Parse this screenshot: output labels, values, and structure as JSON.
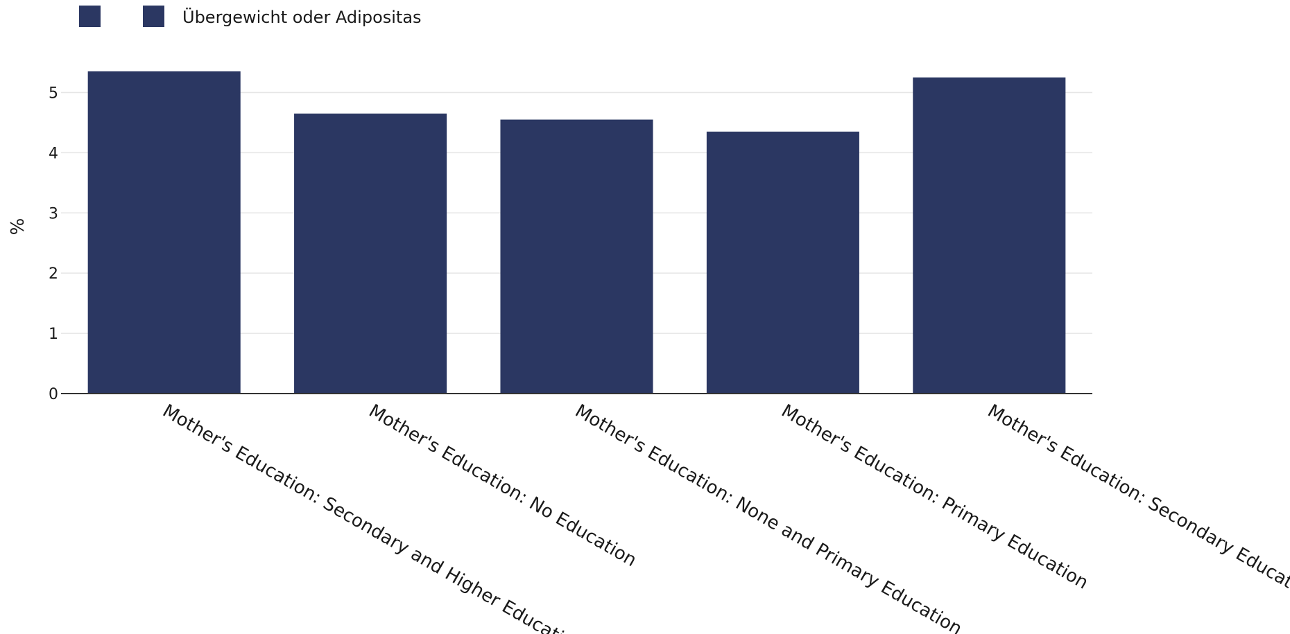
{
  "chart_data": {
    "type": "bar",
    "categories": [
      "Mother's Education: Secondary and Higher Education",
      "Mother's Education: No Education",
      "Mother's Education: None and Primary Education",
      "Mother's Education: Primary Education",
      "Mother's Education: Secondary Education"
    ],
    "series": [
      {
        "name": "Übergewicht oder Adipositas",
        "values": [
          5.35,
          4.65,
          4.55,
          4.35,
          5.25
        ]
      }
    ],
    "legend": {
      "placement": "top-left",
      "entries": [
        "",
        "Übergewicht oder Adipositas"
      ]
    },
    "xlabel": "",
    "ylabel": "%",
    "ylim": [
      0,
      5.5
    ],
    "yticks": [
      0,
      1,
      2,
      3,
      4,
      5
    ],
    "grid": true,
    "colors": {
      "bar": "#2b3762",
      "grid": "#e6e6e6",
      "axis": "#333333"
    }
  }
}
